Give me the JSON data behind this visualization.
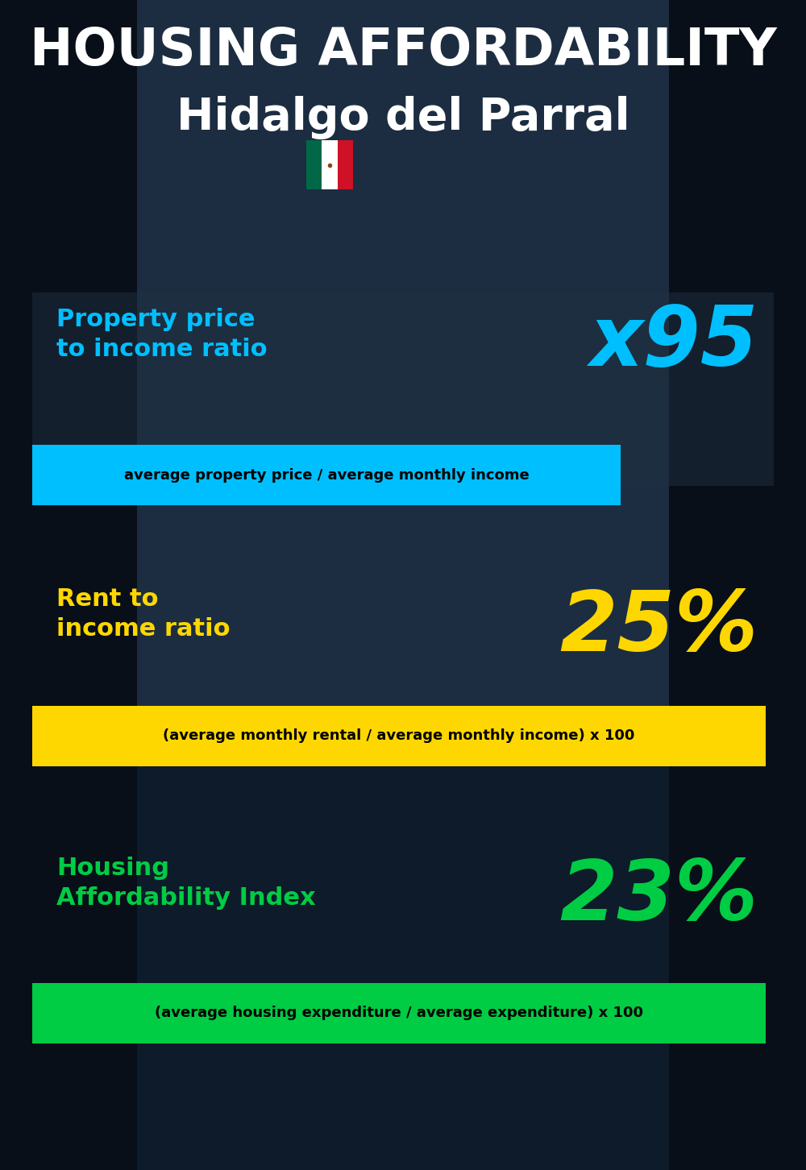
{
  "title_line1": "HOUSING AFFORDABILITY",
  "title_line2": "Hidalgo del Parral",
  "bg_color": "#0d1b2a",
  "section1_label": "Property price\nto income ratio",
  "section1_value": "x95",
  "section1_label_color": "#00bfff",
  "section1_value_color": "#00bfff",
  "section1_banner": "average property price / average monthly income",
  "section1_banner_bg": "#00bfff",
  "section1_banner_color": "#000000",
  "section2_label": "Rent to\nincome ratio",
  "section2_value": "25%",
  "section2_label_color": "#ffd700",
  "section2_value_color": "#ffd700",
  "section2_banner": "(average monthly rental / average monthly income) x 100",
  "section2_banner_bg": "#ffd700",
  "section2_banner_color": "#000000",
  "section3_label": "Housing\nAffordability Index",
  "section3_value": "23%",
  "section3_label_color": "#00cc44",
  "section3_value_color": "#00cc44",
  "section3_banner": "(average housing expenditure / average expenditure) x 100",
  "section3_banner_bg": "#00cc44",
  "section3_banner_color": "#000000",
  "title_color": "#ffffff",
  "subtitle_color": "#ffffff",
  "flag_green": "#006847",
  "flag_white": "#ffffff",
  "flag_red": "#ce1126",
  "flag_eagle": "#8B4513"
}
